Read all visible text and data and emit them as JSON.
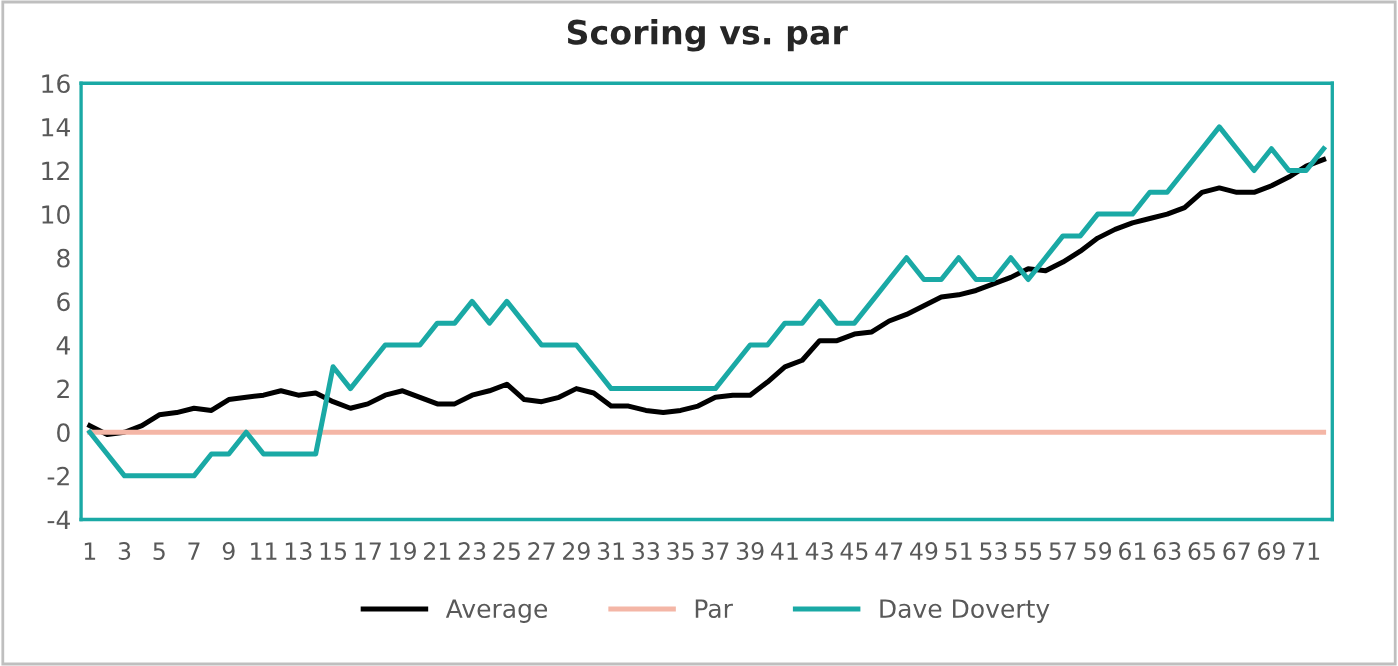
{
  "chart_data": {
    "type": "line",
    "title": "Scoring vs. par",
    "categories": [
      "1",
      null,
      "3",
      null,
      "5",
      null,
      "7",
      null,
      "9",
      null,
      "11",
      null,
      "13",
      null,
      "15",
      null,
      "17",
      null,
      "19",
      null,
      "21",
      null,
      "23",
      null,
      "25",
      null,
      "27",
      null,
      "29",
      null,
      "31",
      null,
      "33",
      null,
      "35",
      null,
      "37",
      null,
      "39",
      null,
      "41",
      null,
      "43",
      null,
      "45",
      null,
      "47",
      null,
      "49",
      null,
      "51",
      null,
      "53",
      null,
      "55",
      null,
      "57",
      null,
      "59",
      null,
      "61",
      null,
      "63",
      null,
      "65",
      null,
      "67",
      null,
      "69",
      null,
      "71",
      null
    ],
    "series": [
      {
        "name": "Average",
        "color": "#000000",
        "values": [
          0.3,
          -0.1,
          0,
          0.3,
          0.8,
          0.9,
          1.1,
          1.0,
          1.5,
          1.6,
          1.7,
          1.9,
          1.7,
          1.8,
          1.4,
          1.1,
          1.3,
          1.7,
          1.9,
          1.6,
          1.3,
          1.3,
          1.7,
          1.9,
          2.2,
          1.5,
          1.4,
          1.6,
          2.0,
          1.8,
          1.2,
          1.2,
          1.0,
          0.9,
          1.0,
          1.2,
          1.6,
          1.7,
          1.7,
          2.3,
          3.0,
          3.3,
          4.2,
          4.2,
          4.5,
          4.6,
          5.1,
          5.4,
          5.8,
          6.2,
          6.3,
          6.5,
          6.8,
          7.1,
          7.5,
          7.4,
          7.8,
          8.3,
          8.9,
          9.3,
          9.6,
          9.8,
          10.0,
          10.3,
          11.0,
          11.2,
          11.0,
          11.0,
          11.3,
          11.7,
          12.2,
          12.5
        ]
      },
      {
        "name": "Par",
        "color": "#f4b6a6",
        "values": [
          0,
          0,
          0,
          0,
          0,
          0,
          0,
          0,
          0,
          0,
          0,
          0,
          0,
          0,
          0,
          0,
          0,
          0,
          0,
          0,
          0,
          0,
          0,
          0,
          0,
          0,
          0,
          0,
          0,
          0,
          0,
          0,
          0,
          0,
          0,
          0,
          0,
          0,
          0,
          0,
          0,
          0,
          0,
          0,
          0,
          0,
          0,
          0,
          0,
          0,
          0,
          0,
          0,
          0,
          0,
          0,
          0,
          0,
          0,
          0,
          0,
          0,
          0,
          0,
          0,
          0,
          0,
          0,
          0,
          0,
          0,
          0
        ]
      },
      {
        "name": "Dave Doverty",
        "color": "#1aa9a5",
        "values": [
          0,
          -1,
          -2,
          -2,
          -2,
          -2,
          -2,
          -1,
          -1,
          0,
          -1,
          -1,
          -1,
          -1,
          3,
          2,
          3,
          4,
          4,
          4,
          5,
          5,
          6,
          5,
          6,
          5,
          4,
          4,
          4,
          3,
          2,
          2,
          2,
          2,
          2,
          2,
          2,
          3,
          4,
          4,
          5,
          5,
          6,
          5,
          5,
          6,
          7,
          8,
          7,
          7,
          8,
          7,
          7,
          8,
          7,
          8,
          9,
          9,
          10,
          10,
          10,
          11,
          11,
          12,
          13,
          14,
          13,
          12,
          13,
          12,
          12,
          13
        ]
      }
    ],
    "ylim": [
      -4,
      16
    ],
    "yticks": [
      -4,
      -2,
      0,
      2,
      4,
      6,
      8,
      10,
      12,
      14,
      16
    ],
    "grid": false,
    "legend": "bottom",
    "marker": "none",
    "line_style": "solid"
  }
}
